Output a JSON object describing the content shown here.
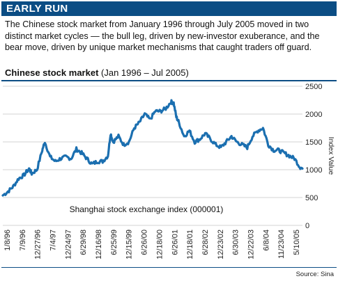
{
  "banner": {
    "title": "EARLY RUN"
  },
  "intro": "The Chinese stock market from January 1996 through July 2005 moved in two distinct market cycles — the bull leg, driven by new-investor exuberance, and the bear move, driven by unique market mechanisms that caught traders off guard.",
  "chart_heading": {
    "main": "Chinese stock market",
    "range": "(Jan 1996 – Jul 2005)"
  },
  "source": "Source: Sina",
  "colors": {
    "banner": "#0b4d84",
    "line": "#1b6fb0",
    "grid": "#d3d3d3"
  },
  "chart_data": {
    "type": "line",
    "title": "Chinese stock market",
    "ylabel": "Index Value",
    "ylim": [
      0,
      2500
    ],
    "yticks": [
      0,
      500,
      1000,
      1500,
      2000,
      2500
    ],
    "grid": "horizontal",
    "annotation": "Shanghai stock exchange index (000001)",
    "xtick_labels": [
      "1/8/96",
      "7/9/96",
      "12/27/96",
      "7/4/97",
      "12/24/97",
      "6/29/98",
      "12/16/98",
      "6/25/99",
      "12/15/99",
      "6/26/00",
      "12/18/00",
      "6/26/01",
      "12/18/01",
      "6/28/02",
      "12/23/02",
      "6/30/03",
      "12/22/03",
      "6/8/04",
      "11/23/04",
      "5/10/05"
    ],
    "series": [
      {
        "x": [
          "1996-01",
          "1996-03",
          "1996-05",
          "1996-07",
          "1996-09",
          "1996-11",
          "1996-12",
          "1997-02",
          "1997-04",
          "1997-05",
          "1997-07",
          "1997-09",
          "1997-11",
          "1998-01",
          "1998-03",
          "1998-05",
          "1998-07",
          "1998-09",
          "1998-11",
          "1999-01",
          "1999-03",
          "1999-05",
          "1999-06",
          "1999-07",
          "1999-09",
          "1999-11",
          "2000-01",
          "2000-03",
          "2000-05",
          "2000-07",
          "2000-09",
          "2000-11",
          "2001-01",
          "2001-03",
          "2001-05",
          "2001-06",
          "2001-07",
          "2001-08",
          "2001-10",
          "2001-12",
          "2002-02",
          "2002-04",
          "2002-06",
          "2002-08",
          "2002-10",
          "2002-12",
          "2003-02",
          "2003-04",
          "2003-06",
          "2003-08",
          "2003-10",
          "2003-12",
          "2004-02",
          "2004-04",
          "2004-06",
          "2004-08",
          "2004-10",
          "2004-12",
          "2005-02",
          "2005-04",
          "2005-06",
          "2005-07"
        ],
        "values": [
          537,
          610,
          700,
          840,
          900,
          1020,
          930,
          1000,
          1350,
          1500,
          1230,
          1150,
          1200,
          1230,
          1200,
          1370,
          1300,
          1200,
          1100,
          1150,
          1150,
          1250,
          1650,
          1500,
          1600,
          1450,
          1500,
          1750,
          1850,
          2000,
          1900,
          2050,
          2050,
          2100,
          2220,
          2200,
          1950,
          1850,
          1600,
          1700,
          1500,
          1550,
          1650,
          1550,
          1450,
          1400,
          1500,
          1600,
          1500,
          1450,
          1400,
          1600,
          1700,
          1750,
          1450,
          1350,
          1350,
          1300,
          1250,
          1200,
          1050,
          1020
        ]
      }
    ]
  }
}
